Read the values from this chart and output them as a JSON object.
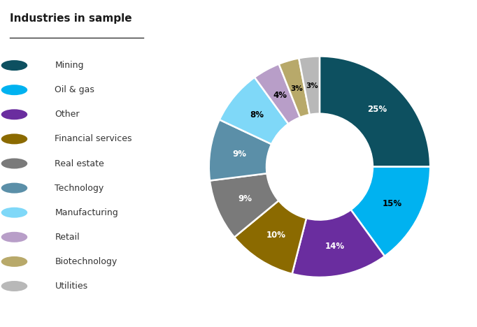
{
  "title": "Industries in sample",
  "labels": [
    "Mining",
    "Oil & gas",
    "Other",
    "Financial services",
    "Real estate",
    "Technology",
    "Manufacturing",
    "Retail",
    "Biotechnology",
    "Utilities"
  ],
  "values": [
    25,
    15,
    14,
    10,
    9,
    9,
    8,
    4,
    3,
    3
  ],
  "colors": [
    "#0d5060",
    "#00b2f0",
    "#6a2d9f",
    "#8b6a00",
    "#7a7a7a",
    "#5b8fa8",
    "#7fd8f8",
    "#b89ec8",
    "#b8a96a",
    "#b8b8b8"
  ],
  "text_colors": [
    "white",
    "black",
    "white",
    "white",
    "white",
    "white",
    "black",
    "black",
    "black",
    "black"
  ],
  "show_label": [
    true,
    true,
    true,
    true,
    true,
    true,
    true,
    true,
    true,
    true
  ],
  "bg_color": "#ffffff",
  "title_fontsize": 11,
  "legend_fontsize": 9
}
